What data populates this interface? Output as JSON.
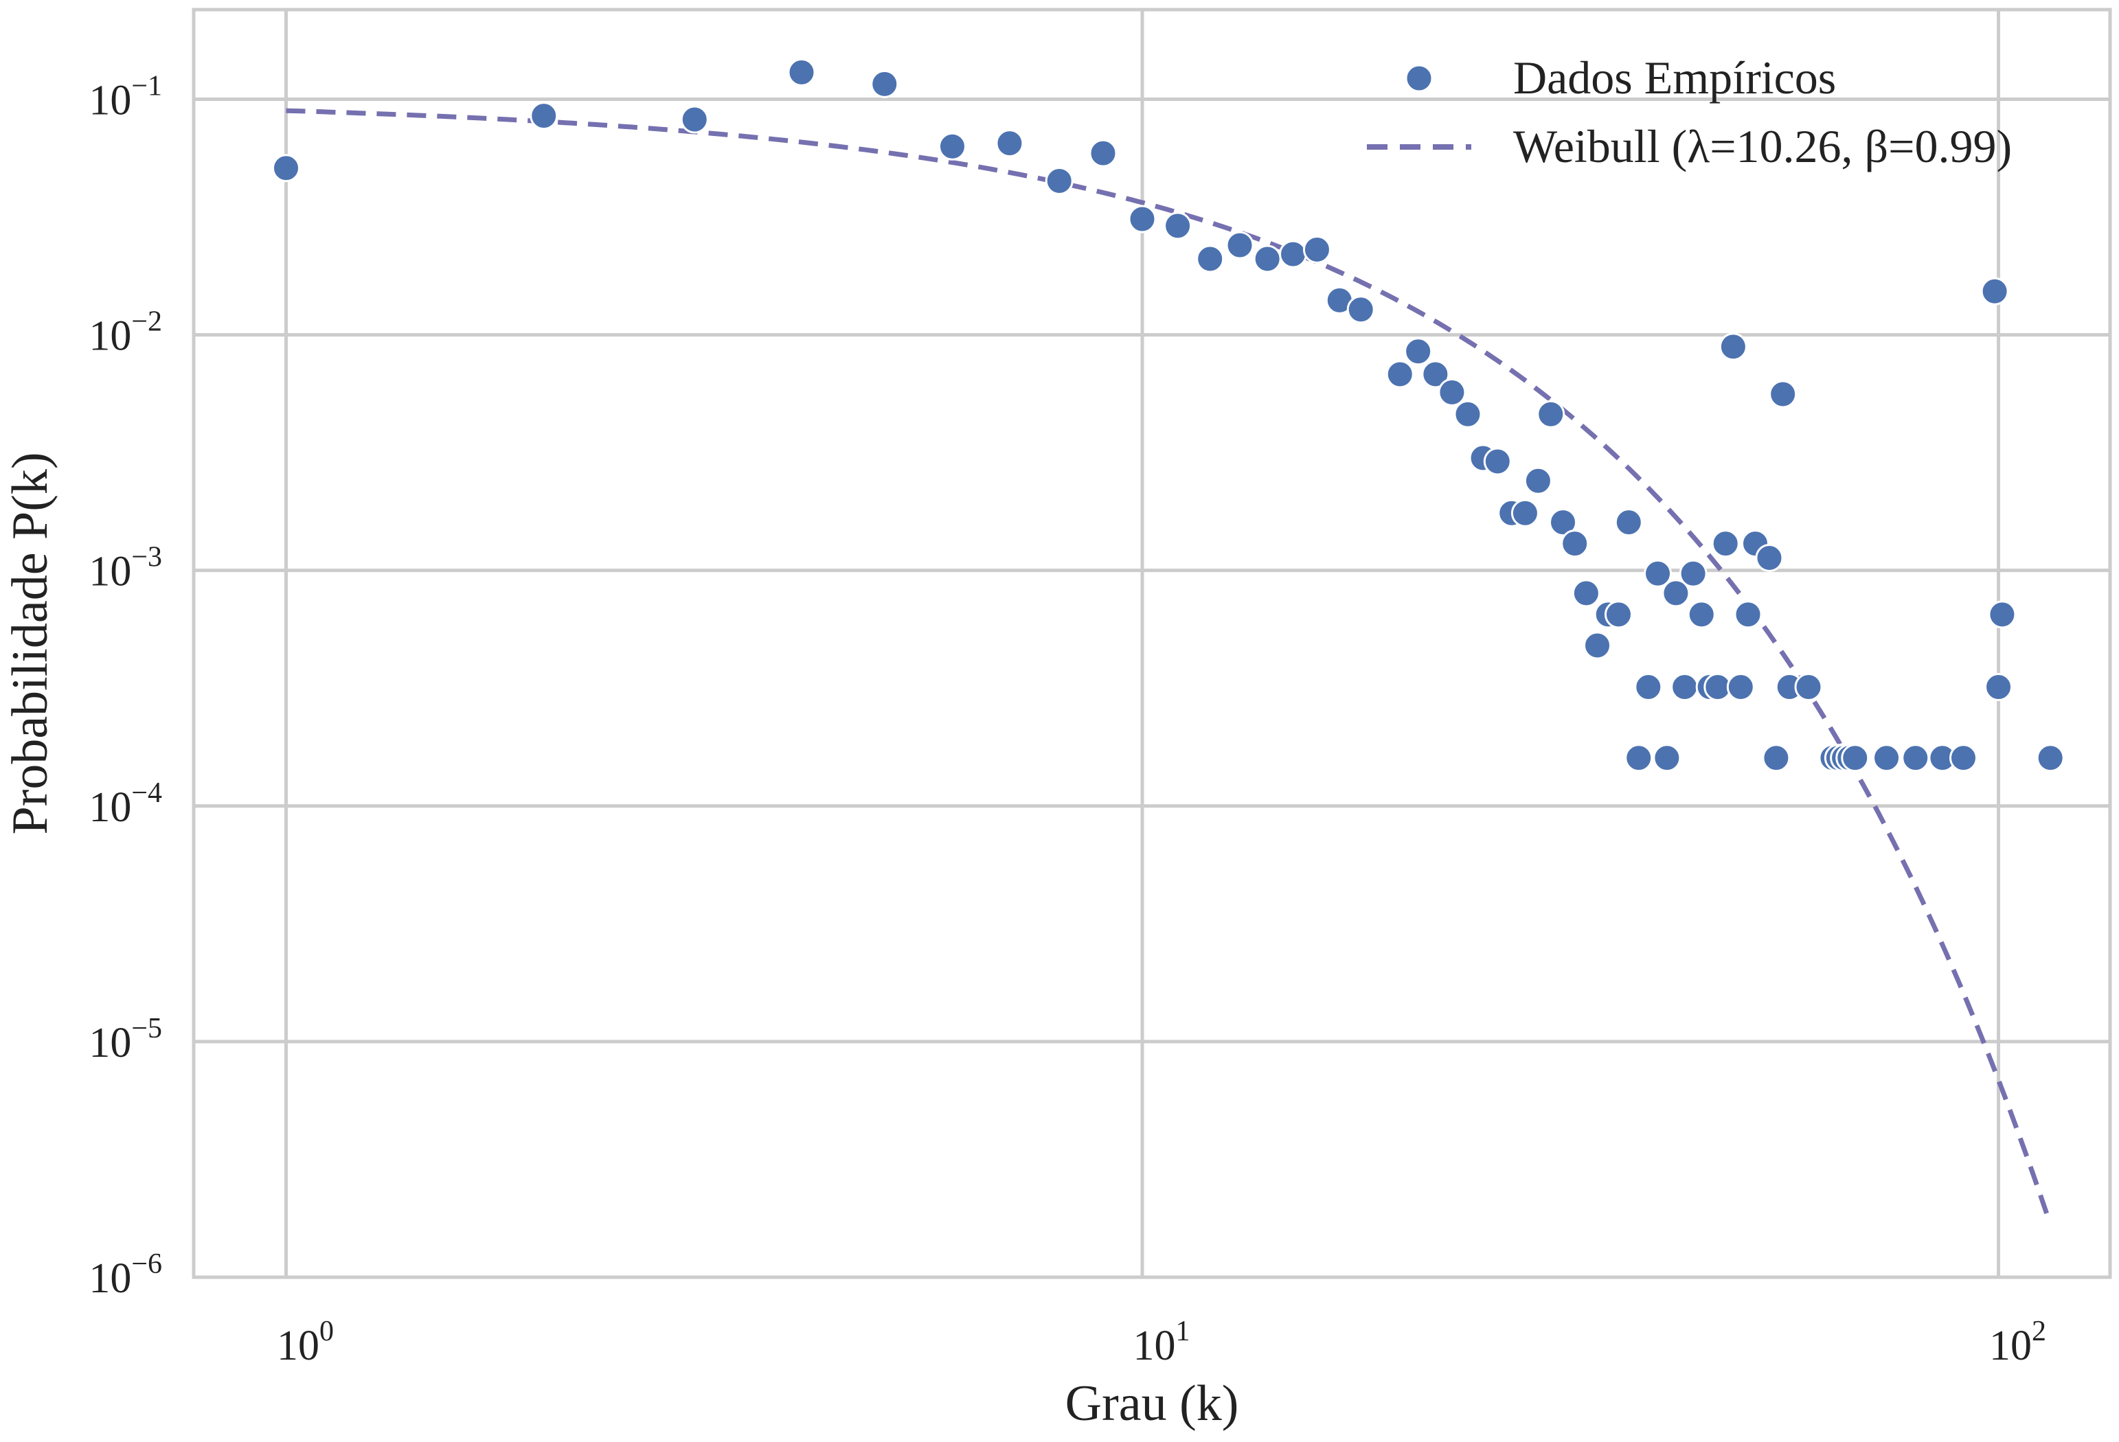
{
  "chart_data": {
    "type": "scatter",
    "title": "",
    "xlabel": "Grau (k)",
    "ylabel": "Probabilidade P(k)",
    "xscale": "log",
    "yscale": "log",
    "xlim": [
      0.78,
      135
    ],
    "ylim": [
      1e-06,
      0.24
    ],
    "grid": true,
    "legend_position": "top-right",
    "x_ticks": [
      {
        "value": 1,
        "base": "10",
        "exp": "0"
      },
      {
        "value": 10,
        "base": "10",
        "exp": "1"
      },
      {
        "value": 100,
        "base": "10",
        "exp": "2"
      }
    ],
    "y_ticks": [
      {
        "value": 0.1,
        "base": "10",
        "exp": "−1"
      },
      {
        "value": 0.01,
        "base": "10",
        "exp": "−2"
      },
      {
        "value": 0.001,
        "base": "10",
        "exp": "−3"
      },
      {
        "value": 0.0001,
        "base": "10",
        "exp": "−4"
      },
      {
        "value": 1e-05,
        "base": "10",
        "exp": "−5"
      },
      {
        "value": 1e-06,
        "base": "10",
        "exp": "−6"
      }
    ],
    "series": [
      {
        "name": "Dados Empíricos",
        "kind": "scatter",
        "color": "#4C72B0",
        "points": [
          [
            1,
            0.051
          ],
          [
            2,
            0.085
          ],
          [
            3,
            0.082
          ],
          [
            4,
            0.13
          ],
          [
            5,
            0.116
          ],
          [
            6,
            0.063
          ],
          [
            7,
            0.065
          ],
          [
            8,
            0.045
          ],
          [
            9,
            0.059
          ],
          [
            10,
            0.031
          ],
          [
            11,
            0.029
          ],
          [
            12,
            0.021
          ],
          [
            13,
            0.024
          ],
          [
            14,
            0.021
          ],
          [
            15,
            0.022
          ],
          [
            16,
            0.023
          ],
          [
            17,
            0.014
          ],
          [
            18,
            0.0128
          ],
          [
            20,
            0.0068
          ],
          [
            21,
            0.0085
          ],
          [
            22,
            0.0068
          ],
          [
            23,
            0.0057
          ],
          [
            24,
            0.0046
          ],
          [
            25,
            0.003
          ],
          [
            26,
            0.0029
          ],
          [
            27,
            0.00175
          ],
          [
            28,
            0.00175
          ],
          [
            29,
            0.0024
          ],
          [
            30,
            0.0046
          ],
          [
            31,
            0.0016
          ],
          [
            32,
            0.0013
          ],
          [
            33,
            0.0008
          ],
          [
            34,
            0.00048
          ],
          [
            35,
            0.00065
          ],
          [
            36,
            0.00065
          ],
          [
            37,
            0.0016
          ],
          [
            38,
            0.00016
          ],
          [
            39,
            0.00032
          ],
          [
            40,
            0.00097
          ],
          [
            41,
            0.00016
          ],
          [
            42,
            0.0008
          ],
          [
            43,
            0.00032
          ],
          [
            44,
            0.00097
          ],
          [
            45,
            0.00065
          ],
          [
            46,
            0.00032
          ],
          [
            47,
            0.00032
          ],
          [
            48,
            0.0013
          ],
          [
            49,
            0.0089
          ],
          [
            50,
            0.00032
          ],
          [
            51,
            0.00065
          ],
          [
            52,
            0.0013
          ],
          [
            54,
            0.00113
          ],
          [
            55,
            0.00016
          ],
          [
            56,
            0.0056
          ],
          [
            57,
            0.00032
          ],
          [
            60,
            0.00032
          ],
          [
            64,
            0.00016
          ],
          [
            65,
            0.00016
          ],
          [
            66,
            0.00016
          ],
          [
            67,
            0.00016
          ],
          [
            68,
            0.00016
          ],
          [
            74,
            0.00016
          ],
          [
            80,
            0.00016
          ],
          [
            86,
            0.00016
          ],
          [
            91,
            0.00016
          ],
          [
            99,
            0.0153
          ],
          [
            100,
            0.00032
          ],
          [
            101,
            0.00065
          ],
          [
            115,
            0.00016
          ]
        ]
      },
      {
        "name": "Weibull (λ=10.26, β=0.99)",
        "kind": "line",
        "style": "dashed",
        "color": "#7570AF",
        "lambda": 10.26,
        "beta": 0.99,
        "x_range": [
          1,
          114
        ]
      }
    ]
  }
}
